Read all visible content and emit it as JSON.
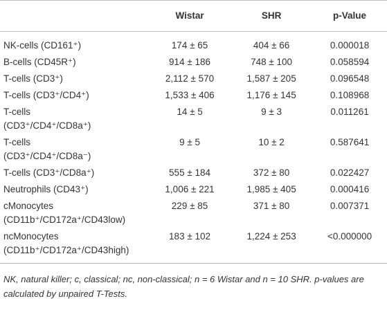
{
  "table": {
    "header": [
      "",
      "Wistar",
      "SHR",
      "p-Value"
    ],
    "rows": [
      [
        "NK-cells (CD161⁺)",
        "174 ± 65",
        "404 ± 66",
        "0.000018"
      ],
      [
        "B-cells (CD45R⁺)",
        "914 ± 186",
        "748 ± 100",
        "0.058594"
      ],
      [
        "T-cells (CD3⁺)",
        "2,112 ± 570",
        "1,587 ± 205",
        "0.096548"
      ],
      [
        "T-cells (CD3⁺/CD4⁺)",
        "1,533 ± 406",
        "1,176 ± 145",
        "0.108968"
      ],
      [
        "T-cells\n(CD3⁺/CD4⁺/CD8a⁺)",
        "14 ± 5",
        "9 ± 3",
        "0.011261"
      ],
      [
        "T-cells\n(CD3⁺/CD4⁺/CD8a⁻)",
        "9 ± 5",
        "10 ± 2",
        "0.587641"
      ],
      [
        "T-cells (CD3⁺/CD8a⁺)",
        "555 ± 184",
        "372 ± 80",
        "0.022427"
      ],
      [
        "Neutrophils (CD43⁺)",
        "1,006 ± 221",
        "1,985 ± 405",
        "0.000416"
      ],
      [
        "cMonocytes\n(CD11b⁺/CD172a⁺/CD43low)",
        "229 ± 85",
        "371 ± 80",
        "0.007371"
      ],
      [
        "ncMonocytes\n(CD11b⁺/CD172a⁺/CD43high)",
        "183 ± 102",
        "1,224 ± 253",
        "<0.000000"
      ]
    ]
  },
  "footnote": "NK, natural killer; c, classical; nc, non-classical; n = 6 Wistar and n = 10 SHR. p-values are calculated by unpaired T-Tests."
}
